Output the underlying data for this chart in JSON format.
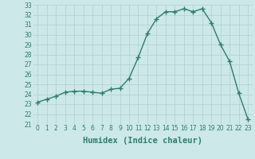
{
  "x": [
    0,
    1,
    2,
    3,
    4,
    5,
    6,
    7,
    8,
    9,
    10,
    11,
    12,
    13,
    14,
    15,
    16,
    17,
    18,
    19,
    20,
    21,
    22,
    23
  ],
  "y": [
    23.2,
    23.5,
    23.8,
    24.2,
    24.3,
    24.3,
    24.2,
    24.1,
    24.5,
    24.6,
    25.6,
    27.7,
    30.1,
    31.6,
    32.3,
    32.3,
    32.6,
    32.3,
    32.6,
    31.2,
    29.0,
    27.3,
    24.1,
    21.5
  ],
  "line_color": "#2e7d6e",
  "marker": "+",
  "marker_size": 4,
  "linewidth": 1.0,
  "bg_color": "#cce8e8",
  "grid_color": "#b0d0d0",
  "xlabel": "Humidex (Indice chaleur)",
  "ylim": [
    21,
    33
  ],
  "xlim": [
    -0.5,
    23.5
  ],
  "yticks": [
    21,
    22,
    23,
    24,
    25,
    26,
    27,
    28,
    29,
    30,
    31,
    32,
    33
  ],
  "xticks": [
    0,
    1,
    2,
    3,
    4,
    5,
    6,
    7,
    8,
    9,
    10,
    11,
    12,
    13,
    14,
    15,
    16,
    17,
    18,
    19,
    20,
    21,
    22,
    23
  ],
  "tick_label_fontsize": 5.5,
  "xlabel_fontsize": 7.5
}
